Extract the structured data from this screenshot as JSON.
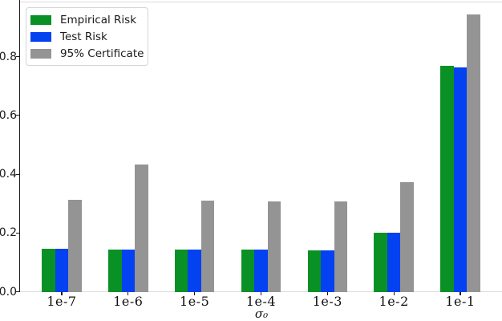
{
  "chart_data": {
    "type": "bar",
    "title": "",
    "xlabel": "σ₀",
    "ylabel": "",
    "categories": [
      "1e-7",
      "1e-6",
      "1e-5",
      "1e-4",
      "1e-3",
      "1e-2",
      "1e-1"
    ],
    "series": [
      {
        "name": "Empirical Risk",
        "color": "#0a9125",
        "values": [
          0.145,
          0.143,
          0.143,
          0.143,
          0.14,
          0.2,
          0.77
        ]
      },
      {
        "name": "Test Risk",
        "color": "#0441f0",
        "values": [
          0.145,
          0.143,
          0.143,
          0.143,
          0.14,
          0.2,
          0.765
        ]
      },
      {
        "name": "95% Certificate",
        "color": "#949494",
        "values": [
          0.314,
          0.434,
          0.309,
          0.307,
          0.307,
          0.372,
          0.943
        ]
      }
    ],
    "yticks": [
      0.0,
      0.2,
      0.4,
      0.6,
      0.8
    ],
    "ylim": [
      0,
      0.986
    ],
    "grid": false,
    "legend_position": "upper-left",
    "axis_colors": {
      "left_spine": "#1a1a1a",
      "bottom_spine": "#dcdcdc",
      "top_spine": "#dcdcdc"
    }
  }
}
